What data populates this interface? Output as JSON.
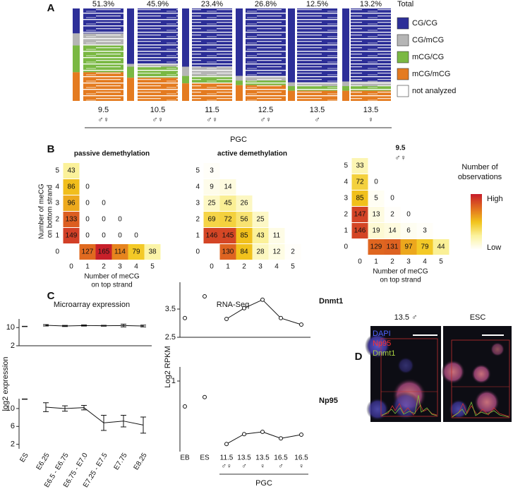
{
  "panel_labels": [
    "A",
    "B",
    "C",
    "D"
  ],
  "chart_data": [
    {
      "type": "stacked_bar",
      "categories": [
        "9.5",
        "10.5",
        "11.5",
        "12.5",
        "13.5",
        "13.5"
      ],
      "sex": [
        "♂♀",
        "♂♀",
        "♂♀",
        "♂♀",
        "♂",
        "♀"
      ],
      "totals": {
        "name": "Total",
        "values": [
          51.3,
          45.9,
          23.4,
          26.8,
          12.5,
          13.2
        ],
        "value_labels": [
          "51.3%",
          "45.9%",
          "23.4%",
          "26.8%",
          "12.5%",
          "13.2%"
        ]
      },
      "series": [
        {
          "name": "CG/CG",
          "color": "#2d2f98",
          "values": [
            27,
            60,
            63,
            73,
            80,
            79
          ]
        },
        {
          "name": "CG/mCG",
          "color": "#b5b5b5",
          "values": [
            13,
            3,
            10,
            5,
            4,
            5
          ]
        },
        {
          "name": "mCG/CG",
          "color": "#7ab843",
          "values": [
            29,
            12,
            8,
            5,
            5,
            5
          ]
        },
        {
          "name": "mCG/mCG",
          "color": "#e47b20",
          "values": [
            31,
            25,
            19,
            17,
            11,
            11
          ]
        }
      ],
      "extra_legend": {
        "name": "not analyzed",
        "color": "#ffffff"
      },
      "group_label": "PGC"
    },
    {
      "type": "heatmap",
      "title": "passive demethylation",
      "x": [
        0,
        0,
        0,
        0,
        0,
        1,
        2,
        3,
        4,
        1,
        2,
        3,
        1,
        2,
        1,
        1,
        2,
        3,
        4,
        5
      ],
      "y": [
        5,
        4,
        3,
        2,
        1,
        1,
        1,
        1,
        1,
        2,
        2,
        2,
        3,
        3,
        4,
        0,
        0,
        0,
        0,
        0
      ],
      "values": [
        43,
        86,
        96,
        133,
        149,
        0,
        0,
        0,
        0,
        0,
        0,
        0,
        0,
        0,
        0,
        127,
        165,
        114,
        79,
        38
      ],
      "xticks": [
        0,
        1,
        2,
        3,
        4,
        5
      ],
      "yticks": [
        0,
        1,
        2,
        3,
        4,
        5
      ],
      "xlabel": [
        "Number of meCG",
        "on top strand"
      ],
      "ylabel": [
        "Number of meCG",
        "on bottom strand"
      ]
    },
    {
      "type": "heatmap",
      "title": "active demethylation",
      "x": [
        0,
        0,
        1,
        0,
        1,
        2,
        0,
        1,
        2,
        3,
        0,
        1,
        2,
        3,
        4,
        1,
        2,
        3,
        4,
        5
      ],
      "y": [
        5,
        4,
        4,
        3,
        3,
        3,
        2,
        2,
        2,
        2,
        1,
        1,
        1,
        1,
        1,
        0,
        0,
        0,
        0,
        0
      ],
      "values": [
        3,
        9,
        14,
        25,
        45,
        26,
        69,
        72,
        56,
        25,
        146,
        145,
        85,
        43,
        11,
        130,
        84,
        28,
        12,
        2
      ],
      "xticks": [
        0,
        1,
        2,
        3,
        4,
        5
      ],
      "yticks": [
        0,
        1,
        2,
        3,
        4,
        5
      ]
    },
    {
      "type": "heatmap",
      "title": "9.5",
      "subtitle": "♂♀",
      "x": [
        0,
        0,
        1,
        0,
        1,
        2,
        0,
        1,
        2,
        3,
        0,
        1,
        2,
        3,
        4,
        1,
        2,
        3,
        4,
        5
      ],
      "y": [
        5,
        4,
        4,
        3,
        3,
        3,
        2,
        2,
        2,
        2,
        1,
        1,
        1,
        1,
        1,
        0,
        0,
        0,
        0,
        0
      ],
      "values": [
        33,
        72,
        0,
        85,
        5,
        0,
        147,
        13,
        2,
        0,
        146,
        19,
        14,
        6,
        3,
        129,
        131,
        97,
        79,
        44
      ],
      "xticks": [
        0,
        1,
        2,
        3,
        4,
        5
      ],
      "yticks": [
        0,
        1,
        2,
        3,
        4,
        5
      ],
      "xlabel": [
        "Number of meCG",
        "on top strand"
      ],
      "colorbar": {
        "title": [
          "Number of",
          "observations"
        ],
        "high": "High",
        "low": "Low",
        "colors": [
          "#ffffff",
          "#fbf3a0",
          "#f2c51c",
          "#e2701f",
          "#c8202a"
        ]
      }
    },
    {
      "type": "line",
      "title": "Microarray expression",
      "ylabel": "log2 expression",
      "marker": "dash",
      "categories": [
        "ES",
        "E6.25",
        "E6.5 - E6.75",
        "E6.75 - E7.0",
        "E7.25 - E7.5",
        "E7.75",
        "E8.25"
      ],
      "panels": [
        {
          "ylim": [
            2,
            13.8
          ],
          "yticks": [
            10,
            2
          ],
          "series": [
            {
              "line": false,
              "values": [
                10.5,
                null,
                null,
                null,
                null,
                null,
                null
              ]
            },
            {
              "line": true,
              "values": [
                null,
                11.0,
                10.7,
                10.9,
                10.8,
                10.9,
                10.7
              ],
              "errors": [
                null,
                0.3,
                0.25,
                0.25,
                0.2,
                0.6,
                0.4
              ]
            }
          ]
        },
        {
          "ylim": [
            1,
            12.2
          ],
          "yticks": [
            10,
            6,
            2
          ],
          "series": [
            {
              "line": false,
              "values": [
                12.1,
                null,
                null,
                null,
                null,
                null,
                null
              ]
            },
            {
              "line": true,
              "values": [
                null,
                10.3,
                10.0,
                10.2,
                6.8,
                7.2,
                6.3
              ],
              "errors": [
                null,
                1.0,
                0.6,
                0.5,
                1.7,
                1.3,
                1.8
              ]
            }
          ]
        }
      ]
    },
    {
      "type": "line",
      "title": "RNA-Seq",
      "ylabel": "Log2 RPKM",
      "marker": "circle",
      "categories": [
        "EB",
        "ES",
        "11.5",
        "13.5",
        "13.5",
        "16.5",
        "16.5"
      ],
      "sex": [
        null,
        null,
        "♂♀",
        "♂",
        "♀",
        "♂",
        "♀"
      ],
      "group_label": "PGC",
      "panels": [
        {
          "ylim": [
            2.5,
            4.45
          ],
          "yticks": [
            3.5,
            2.5
          ],
          "annotation": "Dnmt1",
          "series": [
            {
              "line": false,
              "values": [
                3.18,
                3.95,
                null,
                null,
                null,
                null,
                null
              ]
            },
            {
              "line": true,
              "values": [
                null,
                null,
                3.15,
                3.53,
                3.83,
                3.18,
                2.95
              ]
            }
          ]
        },
        {
          "ylim": [
            -1.5,
            1.5
          ],
          "yticks": [
            1
          ],
          "annotation": "Np95",
          "series": [
            {
              "line": false,
              "values": [
                0.1,
                0.43,
                null,
                null,
                null,
                null,
                null
              ]
            },
            {
              "line": true,
              "values": [
                null,
                null,
                -1.23,
                -0.88,
                -0.8,
                -1.03,
                -0.9
              ]
            }
          ]
        }
      ]
    }
  ],
  "panel_d": {
    "titles": [
      "13.5 ♂",
      "ESC"
    ],
    "channels": [
      {
        "name": "DAPI",
        "color": "#4f63ff"
      },
      {
        "name": "Np95",
        "color": "#ff3030"
      },
      {
        "name": "Dnmt1",
        "color": "#a8d040"
      }
    ]
  }
}
